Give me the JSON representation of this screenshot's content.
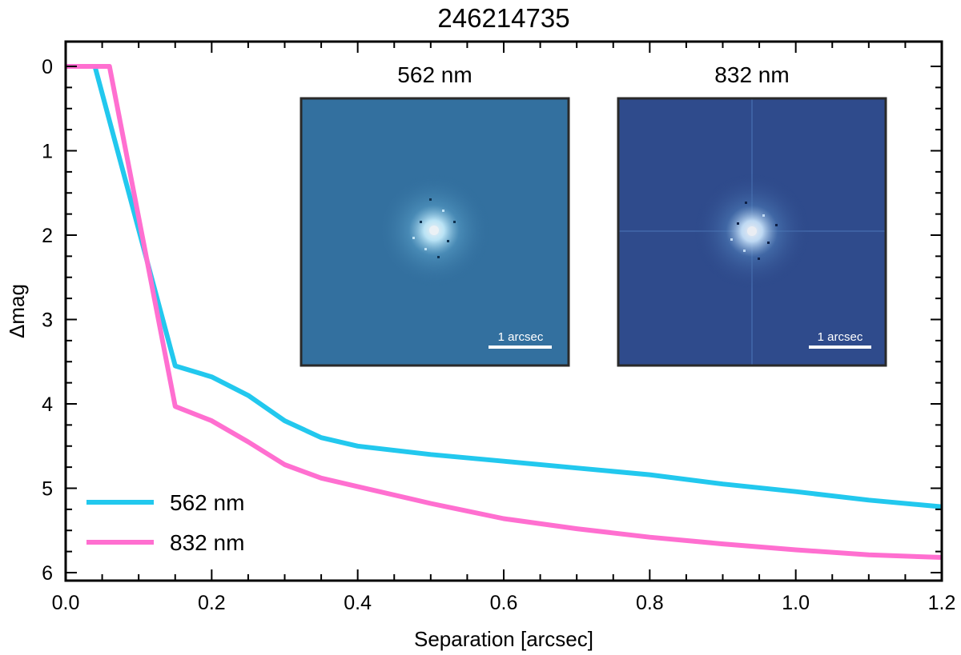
{
  "chart_data": {
    "type": "line",
    "title": "246214735",
    "xlabel": "Separation [arcsec]",
    "ylabel": "Δmag",
    "xlim": [
      0.0,
      1.2
    ],
    "ylim": [
      0,
      6.0
    ],
    "y_inverted": true,
    "grid": false,
    "x_ticks": [
      0.0,
      0.2,
      0.4,
      0.6,
      0.8,
      1.0,
      1.2
    ],
    "x_tick_labels": [
      "0.0",
      "0.2",
      "0.4",
      "0.6",
      "0.8",
      "1.0",
      "1.2"
    ],
    "y_ticks": [
      0,
      1,
      2,
      3,
      4,
      5,
      6
    ],
    "y_tick_labels": [
      "0",
      "1",
      "2",
      "3",
      "4",
      "5",
      "6"
    ],
    "legend_position": "bottom-left",
    "series": [
      {
        "name": "562 nm",
        "color": "#22c8ee",
        "x": [
          0.0,
          0.04,
          0.15,
          0.2,
          0.25,
          0.3,
          0.35,
          0.4,
          0.5,
          0.6,
          0.7,
          0.8,
          0.9,
          1.0,
          1.1,
          1.2
        ],
        "y": [
          0.0,
          0.0,
          3.55,
          3.68,
          3.9,
          4.2,
          4.4,
          4.5,
          4.6,
          4.68,
          4.76,
          4.84,
          4.95,
          5.04,
          5.14,
          5.22
        ]
      },
      {
        "name": "832 nm",
        "color": "#ff6fd0",
        "x": [
          0.0,
          0.06,
          0.15,
          0.2,
          0.25,
          0.3,
          0.35,
          0.4,
          0.5,
          0.6,
          0.7,
          0.8,
          0.9,
          1.0,
          1.1,
          1.2
        ],
        "y": [
          0.0,
          0.0,
          4.03,
          4.2,
          4.45,
          4.72,
          4.88,
          4.98,
          5.18,
          5.36,
          5.48,
          5.58,
          5.66,
          5.73,
          5.79,
          5.82
        ]
      }
    ],
    "insets": [
      {
        "title": "562 nm",
        "scale_bar_label": "1 arcsec",
        "background_color": "#33709f"
      },
      {
        "title": "832 nm",
        "scale_bar_label": "1 arcsec",
        "background_color": "#2f4b8c"
      }
    ]
  }
}
